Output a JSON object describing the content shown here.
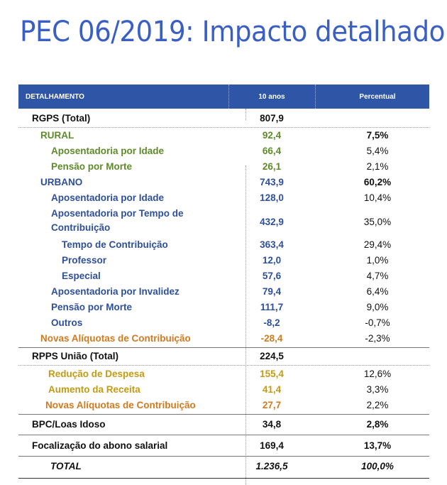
{
  "title": "PEC 06/2019: Impacto detalhado",
  "header": {
    "col1": "DETALHAMENTO",
    "col2": "10 anos",
    "col3": "Percentual"
  },
  "rows": [
    {
      "label": "RGPS (Total)",
      "value": "807,9",
      "pct": ""
    },
    {
      "label": "RURAL",
      "value": "92,4",
      "pct": "7,5%"
    },
    {
      "label": "Aposentadoria por Idade",
      "value": "66,4",
      "pct": "5,4%"
    },
    {
      "label": "Pensão por Morte",
      "value": "26,1",
      "pct": "2,1%"
    },
    {
      "label": "URBANO",
      "value": "743,9",
      "pct": "60,2%"
    },
    {
      "label": "Aposentadoria por Idade",
      "value": "128,0",
      "pct": "10,4%"
    },
    {
      "label": "Aposentadoria por Tempo de",
      "label2": "Contribuição",
      "value": "432,9",
      "pct": "35,0%"
    },
    {
      "label": "Tempo de Contribuição",
      "value": "363,4",
      "pct": "29,4%"
    },
    {
      "label": "Professor",
      "value": "12,0",
      "pct": "1,0%"
    },
    {
      "label": "Especial",
      "value": "57,6",
      "pct": "4,7%"
    },
    {
      "label": "Aposentadoria por Invalidez",
      "value": "79,4",
      "pct": "6,4%"
    },
    {
      "label": "Pensão por Morte",
      "value": "111,7",
      "pct": "9,0%"
    },
    {
      "label": "Outros",
      "value": "-8,2",
      "pct": "-0,7%"
    },
    {
      "label": "Novas Alíquotas de Contribuição",
      "value": "-28,4",
      "pct": "-2,3%"
    },
    {
      "label": "RPPS União (Total)",
      "value": "224,5",
      "pct": ""
    },
    {
      "label": "Redução de Despesa",
      "value": "155,4",
      "pct": "12,6%"
    },
    {
      "label": "Aumento da Receita",
      "value": "41,4",
      "pct": "3,3%"
    },
    {
      "label": "Novas Alíquotas de Contribuição",
      "value": "27,7",
      "pct": "2,2%"
    },
    {
      "label": "BPC/Loas Idoso",
      "value": "34,8",
      "pct": "2,8%"
    },
    {
      "label": "Focalização do abono salarial",
      "value": "169,4",
      "pct": "13,7%"
    },
    {
      "label": "TOTAL",
      "value": "1.236,5",
      "pct": "100,0%"
    }
  ],
  "colors": {
    "title": "#3a5fc4",
    "header_bg": "#2f56a6",
    "green": "#5f8a2a",
    "blue": "#2e4f9c",
    "orange": "#d07b1e",
    "gold": "#c49a12"
  }
}
